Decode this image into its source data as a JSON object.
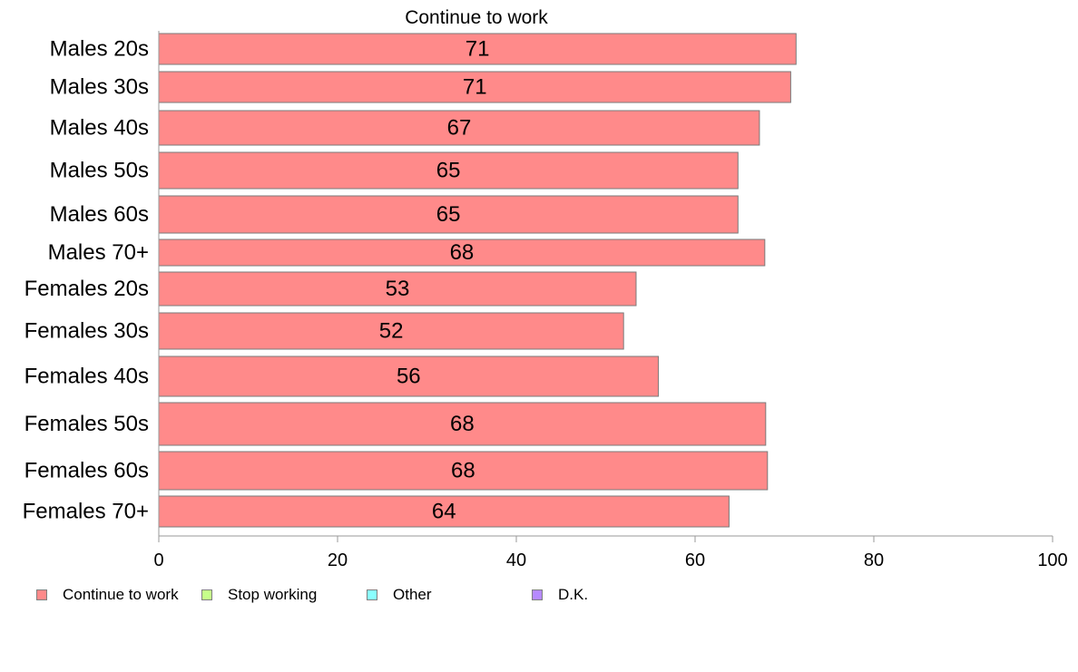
{
  "chart_data": {
    "type": "bar",
    "orientation": "horizontal",
    "title": "Continue to work",
    "xlabel": "",
    "ylabel": "",
    "categories": [
      "Males 20s",
      "Males 30s",
      "Males 40s",
      "Males 50s",
      "Males 60s",
      "Males 70+",
      "Females 20s",
      "Females 30s",
      "Females 40s",
      "Females 50s",
      "Females 60s",
      "Females 70+"
    ],
    "series": [
      {
        "name": "Continue to work",
        "color": "#ff8a8a",
        "values": [
          71.3,
          70.7,
          67.2,
          64.8,
          64.8,
          67.8,
          53.4,
          52.0,
          55.9,
          67.9,
          68.1,
          63.8
        ],
        "labels": [
          "71",
          "71",
          "67",
          "65",
          "65",
          "68",
          "53",
          "52",
          "56",
          "68",
          "68",
          "64"
        ]
      }
    ],
    "xlim": [
      0,
      100
    ],
    "xticks": [
      0,
      20,
      40,
      60,
      80,
      100
    ],
    "xtick_labels": [
      "0",
      "20",
      "40",
      "60",
      "80",
      "100"
    ],
    "grid": false,
    "legend": {
      "placement": "bottom-left",
      "entries": [
        {
          "label": "Continue to work",
          "color": "#ff8a8a"
        },
        {
          "label": "Stop working",
          "color": "#c6ff8a"
        },
        {
          "label": "Other",
          "color": "#8affff"
        },
        {
          "label": "D.K.",
          "color": "#b68aff"
        }
      ]
    }
  }
}
